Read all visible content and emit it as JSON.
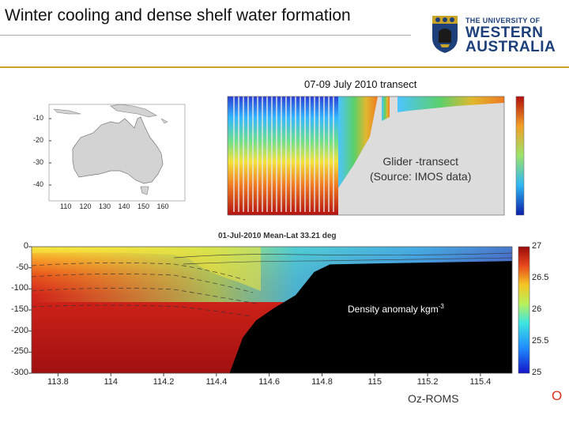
{
  "slide": {
    "title": "Winter cooling and dense shelf water formation",
    "logo": {
      "line1": "THE UNIVERSITY OF",
      "line2": "WESTERN",
      "line3": "AUSTRALIA"
    },
    "corner_mark": "O"
  },
  "colors": {
    "accent_gold": "#c9a227",
    "uwa_blue": "#1d3f7a",
    "shelf_black": "#000000"
  },
  "chart_data": [
    {
      "type": "map",
      "title": "",
      "x_ticks": [
        "110",
        "120",
        "130",
        "140",
        "150",
        "160"
      ],
      "y_ticks": [
        "-10",
        "-20",
        "-30",
        "-40"
      ],
      "xlim": [
        105,
        165
      ],
      "ylim": [
        -47,
        -5
      ]
    },
    {
      "type": "heatmap",
      "title": "07-09 July 2010 transect",
      "annotation": "Glider -transect\n(Source: IMOS data)",
      "annotation_line1": "Glider -transect",
      "annotation_line2": "(Source: IMOS data)"
    },
    {
      "type": "heatmap",
      "title": "01-Jul-2010 Mean-Lat 33.21 deg",
      "annotation": "Density anomaly kgm",
      "annotation_exp": "-3",
      "model_label": "Oz-ROMS",
      "x_ticks": [
        "113.8",
        "114",
        "114.2",
        "114.4",
        "114.6",
        "114.8",
        "115",
        "115.2",
        "115.4"
      ],
      "y_ticks": [
        "0",
        "-50",
        "-100",
        "-150",
        "-200",
        "-250",
        "-300"
      ],
      "xlim": [
        113.7,
        115.52
      ],
      "ylim": [
        -300,
        0
      ],
      "colorbar_ticks": [
        "27",
        "26.5",
        "26",
        "25.5",
        "25"
      ],
      "colorbar_range": [
        25,
        27
      ],
      "seafloor_depth": [
        {
          "lon": 113.7,
          "depth": -300
        },
        {
          "lon": 114.45,
          "depth": -300
        },
        {
          "lon": 114.5,
          "depth": -215
        },
        {
          "lon": 114.55,
          "depth": -175
        },
        {
          "lon": 114.62,
          "depth": -145
        },
        {
          "lon": 114.7,
          "depth": -115
        },
        {
          "lon": 114.77,
          "depth": -60
        },
        {
          "lon": 114.83,
          "depth": -42
        },
        {
          "lon": 115.0,
          "depth": -40
        },
        {
          "lon": 115.52,
          "depth": -34
        }
      ]
    }
  ]
}
